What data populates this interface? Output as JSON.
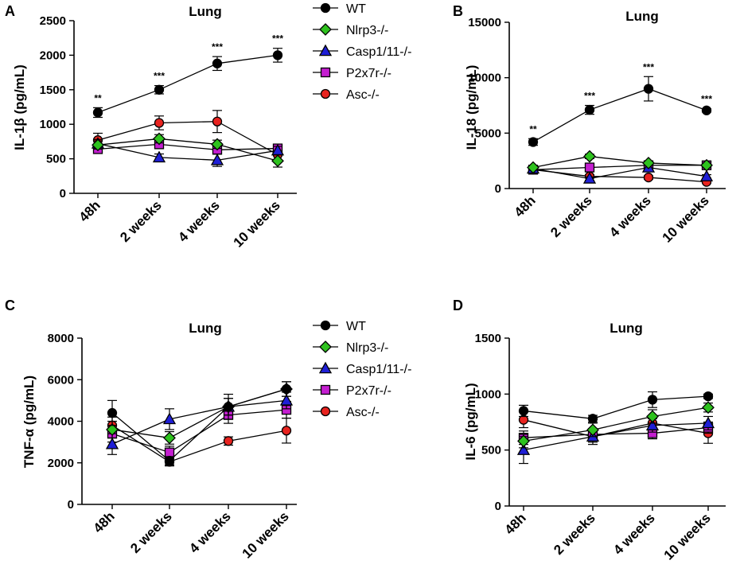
{
  "colors": {
    "WT": "#000000",
    "Nlrp3-/-": "#2ec21e",
    "Casp1/11-/-": "#1f1fd6",
    "P2x7r-/-": "#c41ed0",
    "Asc-/-": "#e8231f"
  },
  "legends": [
    {
      "entries": [
        "WT",
        "Nlrp3-/-",
        "Casp1/11-/-",
        "P2x7r-/-",
        "Asc-/-"
      ]
    },
    {
      "entries": [
        "WT",
        "Nlrp3-/-",
        "Casp1/11-/-",
        "P2x7r-/-",
        "Asc-/-"
      ]
    }
  ],
  "chart_data": [
    {
      "panel": "A",
      "type": "line",
      "title": "Lung",
      "ylabel": "IL-1β (pg/mL)",
      "categories": [
        "48h",
        "2 weeks",
        "4 weeks",
        "10 weeks"
      ],
      "ylim": [
        0,
        2500
      ],
      "yticks": [
        "0",
        "500",
        "1000",
        "1500",
        "2000",
        "2500"
      ],
      "significance": [
        "**",
        "***",
        "***",
        "***"
      ],
      "series": [
        {
          "name": "WT",
          "marker": "circle",
          "values": [
            1170,
            1500,
            1880,
            2000
          ],
          "errors": [
            70,
            60,
            100,
            100
          ]
        },
        {
          "name": "Nlrp3-/-",
          "marker": "diamond",
          "values": [
            700,
            790,
            710,
            470
          ],
          "errors": [
            60,
            60,
            60,
            90
          ]
        },
        {
          "name": "Casp1/11-/-",
          "marker": "triangle",
          "values": [
            720,
            520,
            480,
            620
          ],
          "errors": [
            60,
            50,
            90,
            60
          ]
        },
        {
          "name": "P2x7r-/-",
          "marker": "square",
          "values": [
            640,
            710,
            630,
            650
          ],
          "errors": [
            50,
            60,
            60,
            60
          ]
        },
        {
          "name": "Asc-/-",
          "marker": "circle",
          "values": [
            770,
            1020,
            1040,
            560
          ],
          "errors": [
            100,
            100,
            160,
            90
          ]
        }
      ]
    },
    {
      "panel": "B",
      "type": "line",
      "title": "Lung",
      "ylabel": "IL-18 (pg/mL)",
      "categories": [
        "48h",
        "2 weeks",
        "4 weeks",
        "10 weeks"
      ],
      "ylim": [
        0,
        15000
      ],
      "yticks": [
        "0",
        "5000",
        "10000",
        "15000"
      ],
      "significance": [
        "**",
        "***",
        "***",
        "***"
      ],
      "series": [
        {
          "name": "WT",
          "marker": "circle",
          "values": [
            4200,
            7100,
            9000,
            7050
          ],
          "errors": [
            300,
            400,
            1100,
            150
          ]
        },
        {
          "name": "Nlrp3-/-",
          "marker": "diamond",
          "values": [
            1900,
            2900,
            2300,
            2100
          ],
          "errors": [
            200,
            200,
            200,
            200
          ]
        },
        {
          "name": "Casp1/11-/-",
          "marker": "triangle",
          "values": [
            1800,
            900,
            1900,
            1100
          ],
          "errors": [
            200,
            150,
            200,
            150
          ]
        },
        {
          "name": "P2x7r-/-",
          "marker": "square",
          "values": [
            1700,
            1900,
            2100,
            2100
          ],
          "errors": [
            150,
            200,
            200,
            200
          ]
        },
        {
          "name": "Asc-/-",
          "marker": "circle",
          "values": [
            1700,
            1100,
            1000,
            600
          ],
          "errors": [
            150,
            150,
            150,
            100
          ]
        }
      ]
    },
    {
      "panel": "C",
      "type": "line",
      "title": "Lung",
      "ylabel": "TNF-α (pg/mL)",
      "categories": [
        "48h",
        "2 weeks",
        "4 weeks",
        "10 weeks"
      ],
      "ylim": [
        0,
        8000
      ],
      "yticks": [
        "0",
        "2000",
        "4000",
        "6000",
        "8000"
      ],
      "significance": [],
      "series": [
        {
          "name": "WT",
          "marker": "circle",
          "values": [
            4400,
            2100,
            4700,
            5550
          ],
          "errors": [
            600,
            200,
            600,
            350
          ]
        },
        {
          "name": "Nlrp3-/-",
          "marker": "diamond",
          "values": [
            3600,
            3200,
            4700,
            5550
          ],
          "errors": [
            400,
            300,
            400,
            350
          ]
        },
        {
          "name": "Casp1/11-/-",
          "marker": "triangle",
          "values": [
            2900,
            4100,
            4700,
            5000
          ],
          "errors": [
            500,
            500,
            400,
            400
          ]
        },
        {
          "name": "P2x7r-/-",
          "marker": "square",
          "values": [
            3400,
            2500,
            4300,
            4550
          ],
          "errors": [
            400,
            300,
            400,
            400
          ]
        },
        {
          "name": "Asc-/-",
          "marker": "circle",
          "values": [
            3800,
            2050,
            3050,
            3550
          ],
          "errors": [
            400,
            200,
            200,
            600
          ]
        }
      ]
    },
    {
      "panel": "D",
      "type": "line",
      "title": "Lung",
      "ylabel": "IL-6 (pg/mL)",
      "categories": [
        "48h",
        "2 weeks",
        "4 weeks",
        "10 weeks"
      ],
      "ylim": [
        0,
        1500
      ],
      "yticks": [
        "0",
        "500",
        "1000",
        "1500"
      ],
      "significance": [],
      "series": [
        {
          "name": "WT",
          "marker": "circle",
          "values": [
            850,
            780,
            950,
            980
          ],
          "errors": [
            50,
            30,
            70,
            20
          ]
        },
        {
          "name": "Nlrp3-/-",
          "marker": "diamond",
          "values": [
            580,
            680,
            800,
            880
          ],
          "errors": [
            60,
            60,
            60,
            40
          ]
        },
        {
          "name": "Casp1/11-/-",
          "marker": "triangle",
          "values": [
            500,
            620,
            720,
            740
          ],
          "errors": [
            120,
            70,
            60,
            60
          ]
        },
        {
          "name": "P2x7r-/-",
          "marker": "square",
          "values": [
            610,
            640,
            650,
            700
          ],
          "errors": [
            60,
            50,
            50,
            50
          ]
        },
        {
          "name": "Asc-/-",
          "marker": "circle",
          "values": [
            770,
            620,
            740,
            650
          ],
          "errors": [
            70,
            50,
            70,
            90
          ]
        }
      ]
    }
  ]
}
